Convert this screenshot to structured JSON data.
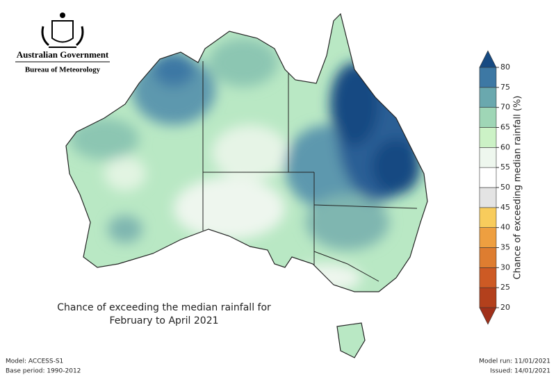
{
  "header": {
    "title": "Australian Government",
    "subtitle": "Bureau of Meteorology"
  },
  "map": {
    "title_lines": [
      "Chance of exceeding the median rainfall for",
      "February to April 2021"
    ]
  },
  "colorbar": {
    "label": "Chance of exceeding median rainfall (%)",
    "ticks": [
      20,
      25,
      30,
      35,
      40,
      45,
      50,
      55,
      60,
      65,
      70,
      75,
      80
    ],
    "colors": [
      "#b3401c",
      "#cd5a24",
      "#de7d30",
      "#ee9f40",
      "#f8cc5c",
      "#e4e4e4",
      "#ffffff",
      "#eef7ee",
      "#ccf2c6",
      "#9fd6b6",
      "#6aa8ae",
      "#3d78a4"
    ],
    "under_color": "#a0301a",
    "over_color": "#164a82"
  },
  "footer": {
    "left": [
      "Model: ACCESS-S1",
      "Base period: 1990-2012"
    ],
    "right": [
      "Model run: 11/01/2021",
      "Issued: 14/01/2021"
    ]
  }
}
